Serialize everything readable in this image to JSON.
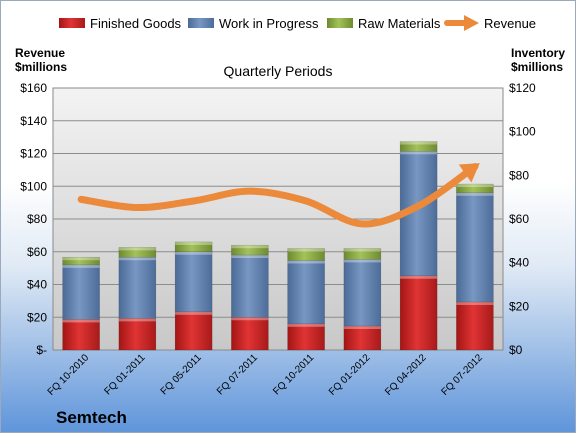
{
  "chart_data": {
    "type": "bar",
    "title": "Quarterly Periods",
    "company": "Semtech",
    "ylabel_left": [
      "Revenue",
      "$millions"
    ],
    "ylabel_right": [
      "Inventory",
      "$millions"
    ],
    "categories": [
      "FQ 10-2010",
      "FQ 01-2011",
      "FQ 05-2011",
      "FQ 07-2011",
      "FQ 10-2011",
      "FQ 01-2012",
      "FQ 04-2012",
      "FQ 07-2012"
    ],
    "left_axis": {
      "min": 0,
      "max": 160,
      "step": 20,
      "tick_labels": [
        "$-",
        "$20",
        "$40",
        "$60",
        "$80",
        "$100",
        "$120",
        "$140",
        "$160"
      ]
    },
    "right_axis": {
      "min": 0,
      "max": 120,
      "step": 20,
      "tick_labels": [
        "$0",
        "$20",
        "$40",
        "$60",
        "$80",
        "$100",
        "$120"
      ]
    },
    "stacked_series_axis": "right",
    "series": [
      {
        "name": "Finished Goods",
        "kind": "bar",
        "color": "#d42a2a",
        "values": [
          14,
          14.5,
          17.5,
          15,
          12,
          11,
          34,
          22
        ]
      },
      {
        "name": "Work in Progress",
        "kind": "bar",
        "color": "#6a8ab5",
        "values": [
          25,
          28,
          27.5,
          28.5,
          29,
          30.5,
          57,
          50
        ]
      },
      {
        "name": "Raw Materials",
        "kind": "bar",
        "color": "#8fac4a",
        "values": [
          3.5,
          4.5,
          4.5,
          4.5,
          5.5,
          5,
          4.5,
          4
        ]
      },
      {
        "name": "Revenue",
        "kind": "line",
        "axis": "left",
        "color": "#ec8a3c",
        "values": [
          92,
          87,
          91,
          97,
          91,
          77,
          88,
          112
        ]
      }
    ],
    "grid": true,
    "legend_position": "top"
  }
}
